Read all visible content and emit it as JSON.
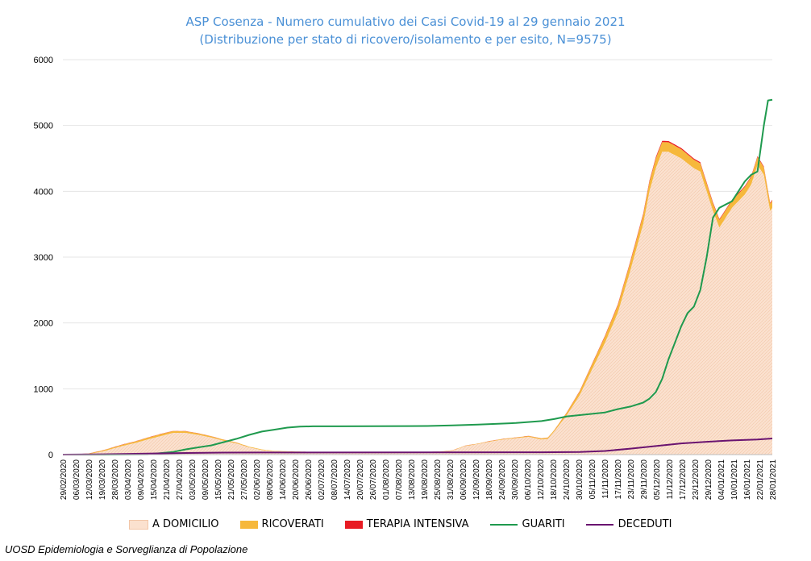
{
  "chart_data": {
    "type": "area",
    "title": "ASP Cosenza - Numero cumulativo dei Casi Covid-19 al 29 gennaio 2021",
    "subtitle": "(Distribuzione per stato di ricovero/isolamento e per esito, N=9575)",
    "ylim": [
      0,
      6000
    ],
    "yticks": [
      0,
      1000,
      2000,
      3000,
      4000,
      5000,
      6000
    ],
    "grid": true,
    "legend_position": "bottom",
    "x_start": "2020-02-29",
    "x_end": "2021-01-29",
    "xtick_labels": [
      "29/02/2020",
      "06/03/2020",
      "12/03/2020",
      "19/03/2020",
      "28/03/2020",
      "03/04/2020",
      "09/04/2020",
      "15/04/2020",
      "21/04/2020",
      "27/04/2020",
      "03/05/2020",
      "09/05/2020",
      "15/05/2020",
      "21/05/2020",
      "27/05/2020",
      "02/06/2020",
      "08/06/2020",
      "14/06/2020",
      "20/06/2020",
      "26/06/2020",
      "02/07/2020",
      "08/07/2020",
      "14/07/2020",
      "20/07/2020",
      "26/07/2020",
      "01/08/2020",
      "07/08/2020",
      "13/08/2020",
      "19/08/2020",
      "25/08/2020",
      "31/08/2020",
      "06/09/2020",
      "12/09/2020",
      "18/09/2020",
      "24/09/2020",
      "30/09/2020",
      "06/10/2020",
      "12/10/2020",
      "18/10/2020",
      "24/10/2020",
      "30/10/2020",
      "05/11/2020",
      "11/11/2020",
      "17/11/2020",
      "23/11/2020",
      "29/11/2020",
      "05/12/2020",
      "11/12/2020",
      "17/12/2020",
      "23/12/2020",
      "29/12/2020",
      "04/01/2021",
      "10/01/2021",
      "16/01/2021",
      "22/01/2021",
      "28/01/2021"
    ],
    "series": [
      {
        "name": "A DOMICILIO",
        "type": "area",
        "color": "#fbe1cf",
        "points": [
          [
            "2020-02-29",
            0
          ],
          [
            "2020-03-12",
            5
          ],
          [
            "2020-03-19",
            50
          ],
          [
            "2020-03-28",
            130
          ],
          [
            "2020-04-03",
            175
          ],
          [
            "2020-04-09",
            230
          ],
          [
            "2020-04-15",
            280
          ],
          [
            "2020-04-21",
            330
          ],
          [
            "2020-04-27",
            330
          ],
          [
            "2020-05-03",
            300
          ],
          [
            "2020-05-09",
            260
          ],
          [
            "2020-05-15",
            210
          ],
          [
            "2020-05-21",
            170
          ],
          [
            "2020-05-27",
            110
          ],
          [
            "2020-06-02",
            70
          ],
          [
            "2020-06-08",
            50
          ],
          [
            "2020-06-14",
            45
          ],
          [
            "2020-06-20",
            40
          ],
          [
            "2020-06-26",
            35
          ],
          [
            "2020-07-02",
            30
          ],
          [
            "2020-07-08",
            30
          ],
          [
            "2020-07-14",
            30
          ],
          [
            "2020-07-20",
            30
          ],
          [
            "2020-07-26",
            30
          ],
          [
            "2020-08-01",
            30
          ],
          [
            "2020-08-07",
            30
          ],
          [
            "2020-08-13",
            30
          ],
          [
            "2020-08-19",
            35
          ],
          [
            "2020-08-25",
            40
          ],
          [
            "2020-08-31",
            60
          ],
          [
            "2020-09-06",
            130
          ],
          [
            "2020-09-12",
            160
          ],
          [
            "2020-09-18",
            200
          ],
          [
            "2020-09-24",
            230
          ],
          [
            "2020-09-30",
            250
          ],
          [
            "2020-10-06",
            270
          ],
          [
            "2020-10-12",
            230
          ],
          [
            "2020-10-15",
            240
          ],
          [
            "2020-10-18",
            350
          ],
          [
            "2020-10-24",
            600
          ],
          [
            "2020-10-30",
            900
          ],
          [
            "2020-11-05",
            1300
          ],
          [
            "2020-11-11",
            1700
          ],
          [
            "2020-11-17",
            2150
          ],
          [
            "2020-11-23",
            2800
          ],
          [
            "2020-11-29",
            3500
          ],
          [
            "2020-12-02",
            4000
          ],
          [
            "2020-12-05",
            4350
          ],
          [
            "2020-12-08",
            4600
          ],
          [
            "2020-12-11",
            4600
          ],
          [
            "2020-12-14",
            4550
          ],
          [
            "2020-12-17",
            4500
          ],
          [
            "2020-12-23",
            4350
          ],
          [
            "2020-12-26",
            4300
          ],
          [
            "2020-12-29",
            4000
          ],
          [
            "2021-01-01",
            3700
          ],
          [
            "2021-01-04",
            3450
          ],
          [
            "2021-01-07",
            3600
          ],
          [
            "2021-01-10",
            3750
          ],
          [
            "2021-01-13",
            3850
          ],
          [
            "2021-01-16",
            3950
          ],
          [
            "2021-01-19",
            4100
          ],
          [
            "2021-01-22",
            4400
          ],
          [
            "2021-01-25",
            4250
          ],
          [
            "2021-01-28",
            3700
          ],
          [
            "2021-01-29",
            3750
          ]
        ]
      },
      {
        "name": "RICOVERATI",
        "type": "area",
        "color": "#f6b83c",
        "points": [
          [
            "2020-02-29",
            0
          ],
          [
            "2020-03-19",
            15
          ],
          [
            "2020-04-15",
            30
          ],
          [
            "2020-04-27",
            25
          ],
          [
            "2020-05-27",
            10
          ],
          [
            "2020-06-14",
            5
          ],
          [
            "2020-08-31",
            5
          ],
          [
            "2020-09-30",
            10
          ],
          [
            "2020-10-18",
            20
          ],
          [
            "2020-10-30",
            60
          ],
          [
            "2020-11-11",
            100
          ],
          [
            "2020-11-23",
            130
          ],
          [
            "2020-12-05",
            150
          ],
          [
            "2020-12-17",
            140
          ],
          [
            "2020-12-29",
            120
          ],
          [
            "2021-01-10",
            110
          ],
          [
            "2021-01-22",
            120
          ],
          [
            "2021-01-29",
            110
          ]
        ]
      },
      {
        "name": "TERAPIA INTENSIVA",
        "type": "area",
        "color": "#e81b23",
        "points": [
          [
            "2020-02-29",
            0
          ],
          [
            "2020-03-28",
            3
          ],
          [
            "2020-04-27",
            3
          ],
          [
            "2020-06-02",
            0
          ],
          [
            "2020-10-18",
            2
          ],
          [
            "2020-11-11",
            10
          ],
          [
            "2020-12-05",
            20
          ],
          [
            "2020-12-29",
            15
          ],
          [
            "2021-01-29",
            12
          ]
        ]
      },
      {
        "name": "GUARITI",
        "type": "line",
        "color": "#1f9a4e",
        "points": [
          [
            "2020-02-29",
            0
          ],
          [
            "2020-03-19",
            0
          ],
          [
            "2020-04-09",
            5
          ],
          [
            "2020-04-21",
            40
          ],
          [
            "2020-04-27",
            80
          ],
          [
            "2020-05-03",
            110
          ],
          [
            "2020-05-09",
            140
          ],
          [
            "2020-05-15",
            190
          ],
          [
            "2020-05-21",
            240
          ],
          [
            "2020-05-27",
            300
          ],
          [
            "2020-06-02",
            350
          ],
          [
            "2020-06-08",
            380
          ],
          [
            "2020-06-14",
            410
          ],
          [
            "2020-06-20",
            425
          ],
          [
            "2020-06-26",
            430
          ],
          [
            "2020-07-08",
            430
          ],
          [
            "2020-08-19",
            435
          ],
          [
            "2020-08-31",
            445
          ],
          [
            "2020-09-12",
            455
          ],
          [
            "2020-09-30",
            480
          ],
          [
            "2020-10-12",
            510
          ],
          [
            "2020-10-18",
            540
          ],
          [
            "2020-10-24",
            580
          ],
          [
            "2020-10-30",
            600
          ],
          [
            "2020-11-05",
            620
          ],
          [
            "2020-11-11",
            640
          ],
          [
            "2020-11-17",
            690
          ],
          [
            "2020-11-23",
            730
          ],
          [
            "2020-11-29",
            790
          ],
          [
            "2020-12-02",
            850
          ],
          [
            "2020-12-05",
            950
          ],
          [
            "2020-12-08",
            1150
          ],
          [
            "2020-12-11",
            1450
          ],
          [
            "2020-12-14",
            1700
          ],
          [
            "2020-12-17",
            1950
          ],
          [
            "2020-12-20",
            2150
          ],
          [
            "2020-12-23",
            2250
          ],
          [
            "2020-12-26",
            2500
          ],
          [
            "2020-12-29",
            3000
          ],
          [
            "2021-01-01",
            3600
          ],
          [
            "2021-01-04",
            3750
          ],
          [
            "2021-01-07",
            3800
          ],
          [
            "2021-01-10",
            3850
          ],
          [
            "2021-01-13",
            4000
          ],
          [
            "2021-01-16",
            4150
          ],
          [
            "2021-01-19",
            4250
          ],
          [
            "2021-01-22",
            4300
          ],
          [
            "2021-01-25",
            5000
          ],
          [
            "2021-01-27",
            5380
          ],
          [
            "2021-01-29",
            5390
          ]
        ]
      },
      {
        "name": "DECEDUTI",
        "type": "line",
        "color": "#6a1470",
        "points": [
          [
            "2020-02-29",
            0
          ],
          [
            "2020-03-19",
            5
          ],
          [
            "2020-04-09",
            15
          ],
          [
            "2020-04-27",
            25
          ],
          [
            "2020-05-15",
            30
          ],
          [
            "2020-06-02",
            32
          ],
          [
            "2020-10-12",
            35
          ],
          [
            "2020-10-30",
            40
          ],
          [
            "2020-11-11",
            55
          ],
          [
            "2020-11-23",
            90
          ],
          [
            "2020-12-05",
            130
          ],
          [
            "2020-12-17",
            170
          ],
          [
            "2020-12-29",
            195
          ],
          [
            "2021-01-10",
            215
          ],
          [
            "2021-01-22",
            230
          ],
          [
            "2021-01-29",
            245
          ]
        ]
      }
    ]
  },
  "legend": [
    {
      "label": "A DOMICILIO",
      "color": "#fbe1cf",
      "kind": "area"
    },
    {
      "label": "RICOVERATI",
      "color": "#f6b83c",
      "kind": "area"
    },
    {
      "label": "TERAPIA INTENSIVA",
      "color": "#e81b23",
      "kind": "area"
    },
    {
      "label": "GUARITI",
      "color": "#1f9a4e",
      "kind": "line"
    },
    {
      "label": "DECEDUTI",
      "color": "#6a1470",
      "kind": "line"
    }
  ],
  "footer": "UOSD Epidemiologia e Sorveglianza di Popolazione"
}
